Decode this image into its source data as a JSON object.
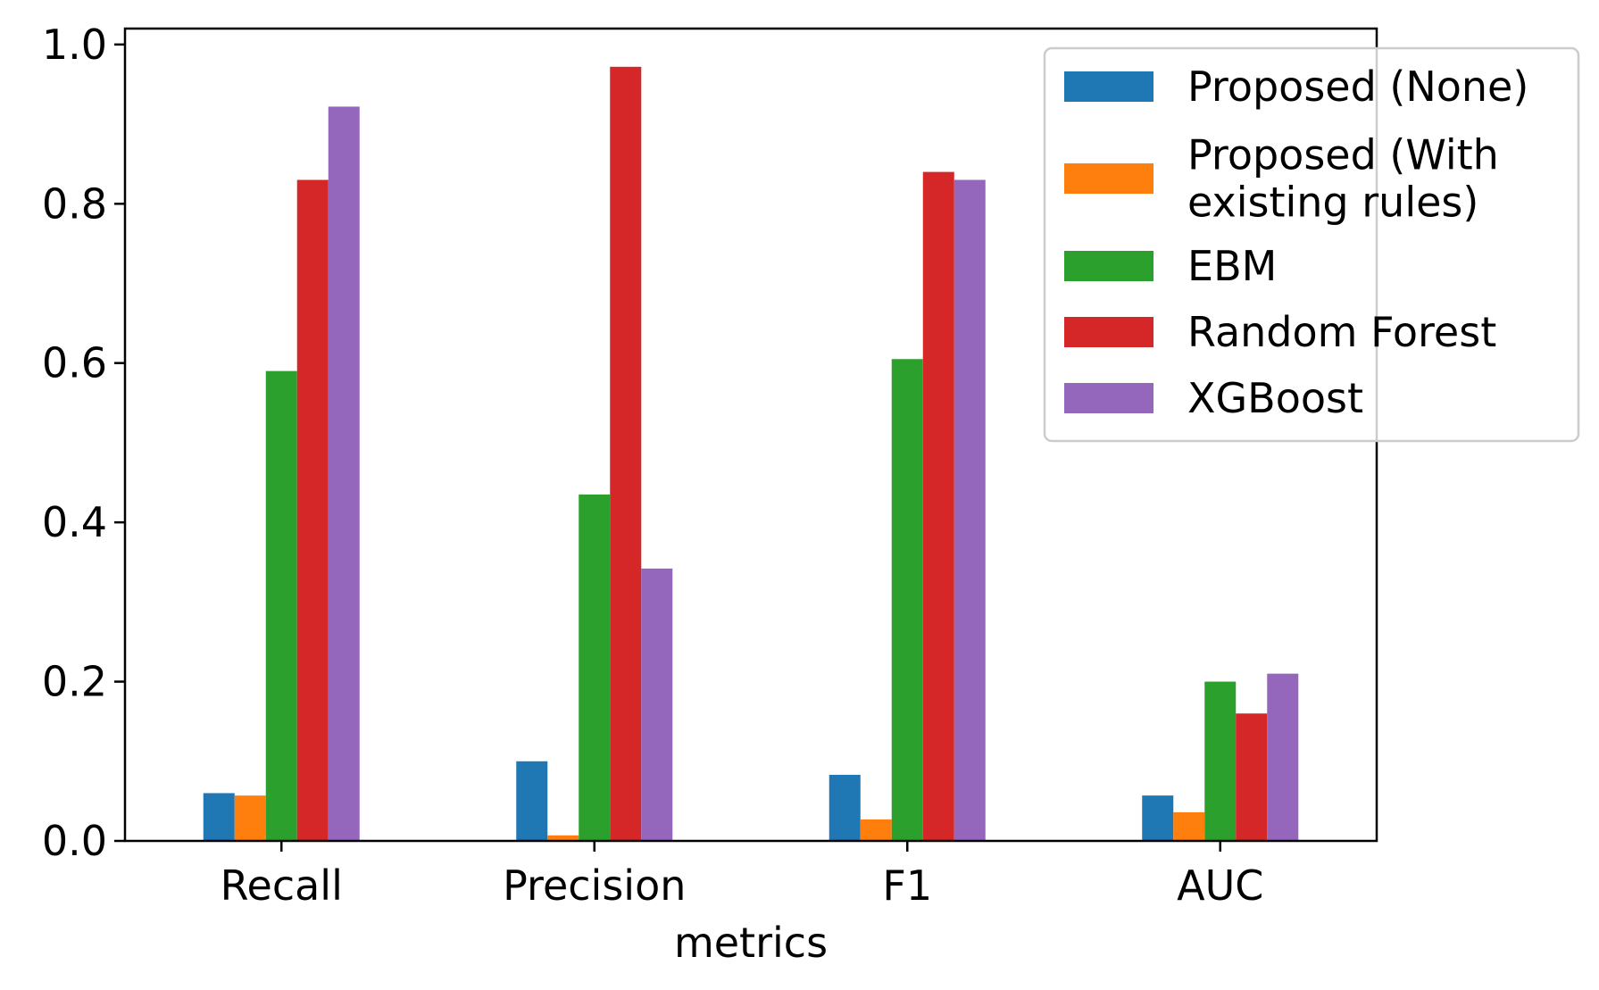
{
  "chart_data": {
    "type": "bar",
    "title": "",
    "xlabel": "metrics",
    "ylabel": "",
    "categories": [
      "Recall",
      "Precision",
      "F1",
      "AUC"
    ],
    "ylim": [
      0,
      1.02
    ],
    "yticks": [
      "0.0",
      "0.2",
      "0.4",
      "0.6",
      "0.8",
      "1.0"
    ],
    "ytick_values": [
      0,
      0.2,
      0.4,
      0.6,
      0.8,
      1.0
    ],
    "grid": false,
    "legend_placement": "top-right",
    "series": [
      {
        "name": "Proposed (None)",
        "legend_lines": [
          "Proposed (None)"
        ],
        "color": "#1f77b4",
        "values": [
          0.06,
          0.1,
          0.083,
          0.057
        ]
      },
      {
        "name": "Proposed (With existing rules)",
        "legend_lines": [
          "Proposed (With",
          " existing rules)"
        ],
        "color": "#ff7f0e",
        "values": [
          0.057,
          0.007,
          0.027,
          0.036
        ]
      },
      {
        "name": "EBM",
        "legend_lines": [
          "EBM"
        ],
        "color": "#2ca02c",
        "values": [
          0.59,
          0.435,
          0.605,
          0.2
        ]
      },
      {
        "name": "Random Forest",
        "legend_lines": [
          "Random Forest"
        ],
        "color": "#d62728",
        "values": [
          0.83,
          0.972,
          0.84,
          0.16
        ]
      },
      {
        "name": "XGBoost",
        "legend_lines": [
          "XGBoost"
        ],
        "color": "#9467bd",
        "values": [
          0.922,
          0.342,
          0.83,
          0.21
        ]
      }
    ]
  }
}
